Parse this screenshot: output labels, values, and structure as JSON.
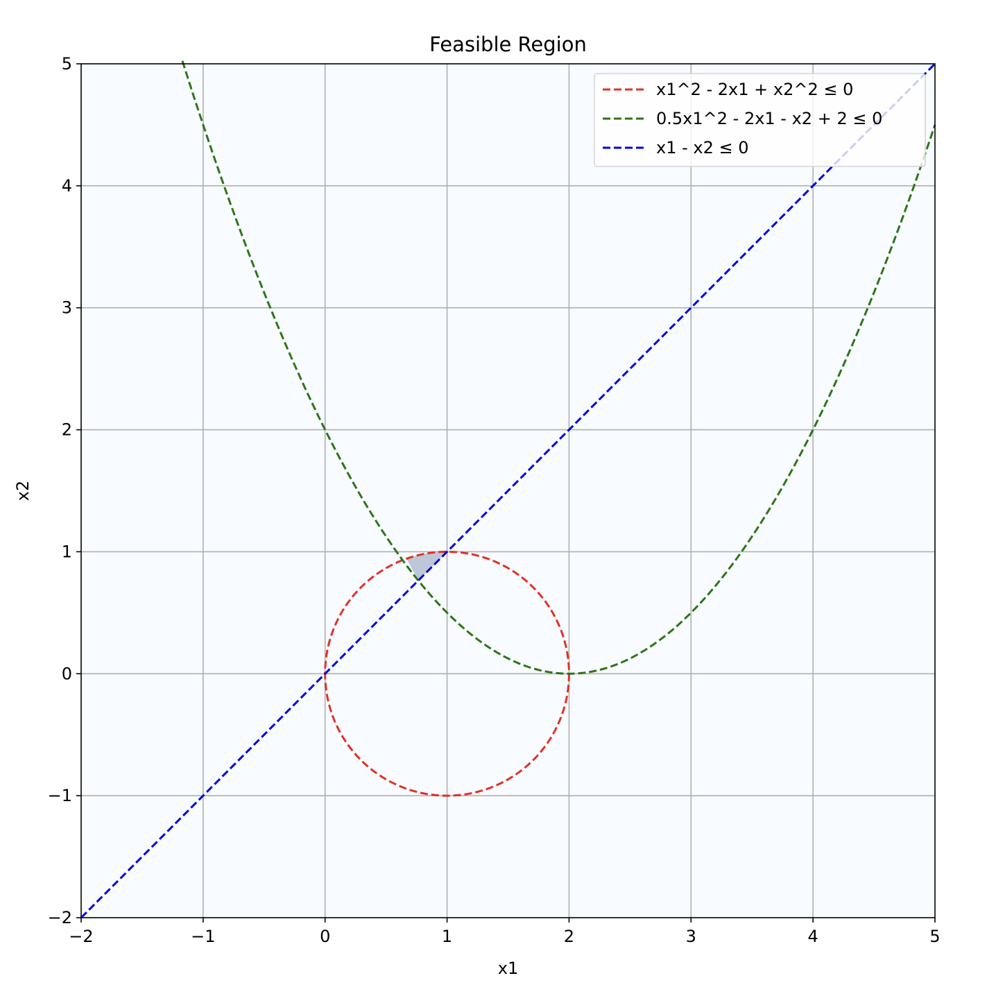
{
  "chart_data": {
    "type": "line",
    "title": "Feasible Region",
    "xlabel": "x1",
    "ylabel": "x2",
    "xlim": [
      -2,
      5
    ],
    "ylim": [
      -2,
      5
    ],
    "xticks": [
      -2,
      -1,
      0,
      1,
      2,
      3,
      4,
      5
    ],
    "yticks": [
      -2,
      -1,
      0,
      1,
      2,
      3,
      4,
      5
    ],
    "xtick_labels": [
      "−2",
      "−1",
      "0",
      "1",
      "2",
      "3",
      "4",
      "5"
    ],
    "ytick_labels": [
      "−2",
      "−1",
      "0",
      "1",
      "2",
      "3",
      "4",
      "5"
    ],
    "grid": true,
    "legend_position": "top-right",
    "series": [
      {
        "name": "x1^2 - 2x1 + x2^2 ≤ 0",
        "color": "#e03126",
        "style": "dashed",
        "curve": "circle",
        "center": [
          1,
          0
        ],
        "radius": 1
      },
      {
        "name": "0.5x1^2 - 2x1 - x2 + 2 ≤ 0",
        "color": "#2e7418",
        "style": "dashed",
        "curve": "parabola",
        "coefficients": {
          "a": 0.5,
          "b": -2,
          "c": 2
        },
        "x_range": [
          -1.17,
          5
        ]
      },
      {
        "name": "x1 - x2 ≤ 0",
        "color": "#0000e6",
        "style": "dashed",
        "curve": "line",
        "points": [
          [
            -2,
            -2
          ],
          [
            5,
            5
          ]
        ]
      }
    ],
    "feasible_region": {
      "color": "#b7c1d4",
      "vertices": [
        [
          0.667,
          0.943
        ],
        [
          0.764,
          0.764
        ],
        [
          1,
          1
        ]
      ],
      "arc_center": [
        1,
        0
      ]
    },
    "plot_background": "#f8fbff"
  }
}
